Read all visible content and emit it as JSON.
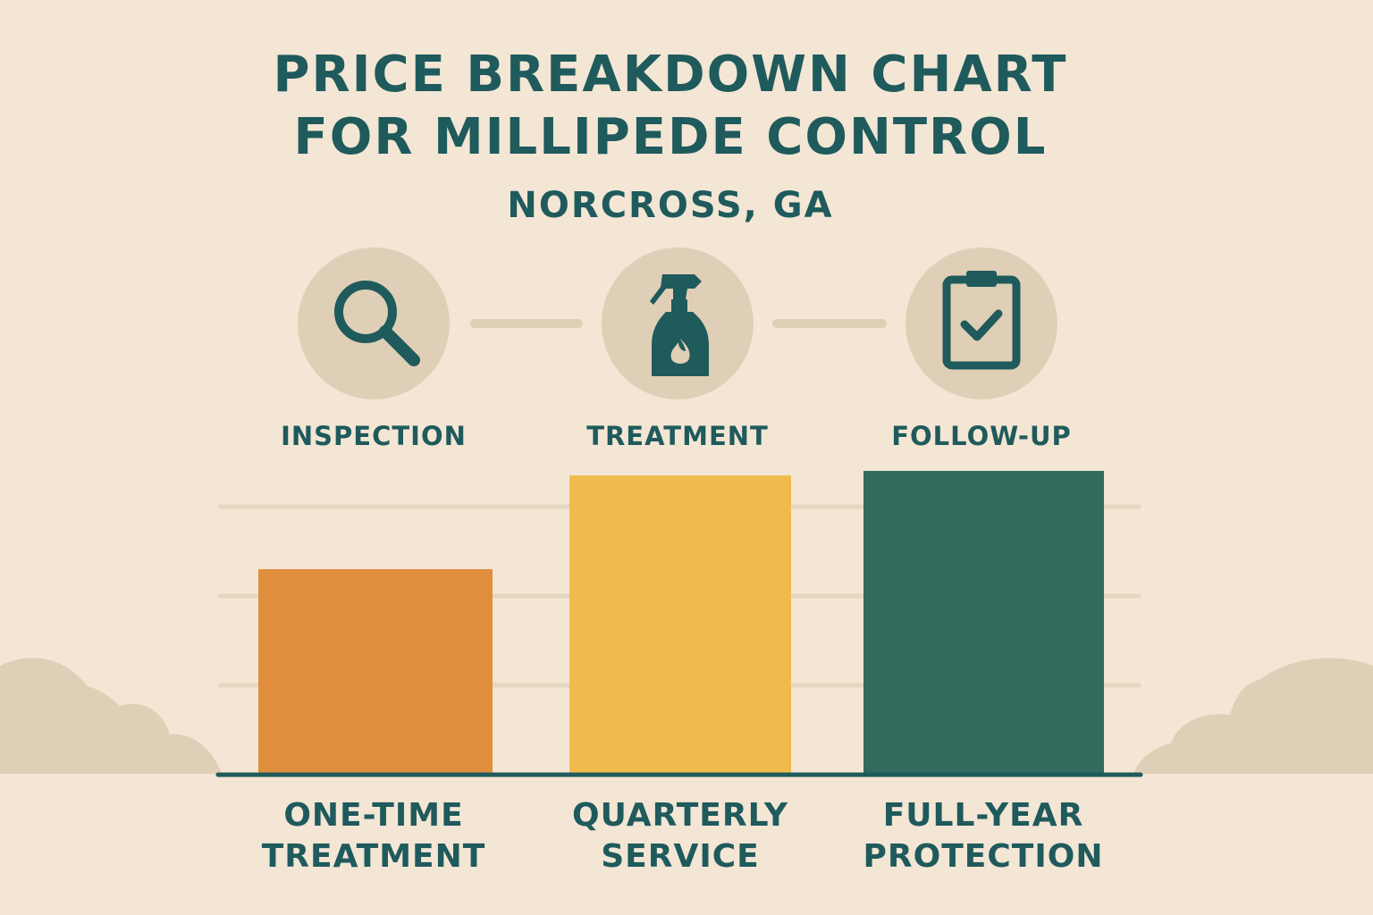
{
  "header": {
    "title_line1": "PRICE BREAKDOWN CHART",
    "title_line2": "FOR MILLIPEDE CONTROL",
    "subtitle": "NORCROSS, GA"
  },
  "steps": [
    {
      "label": "INSPECTION",
      "icon": "magnifying-glass-icon"
    },
    {
      "label": "TREATMENT",
      "icon": "spray-bottle-icon"
    },
    {
      "label": "FOLLOW-UP",
      "icon": "clipboard-check-icon"
    }
  ],
  "colors": {
    "background": "#f3e6d4",
    "text": "#1f5a5c",
    "bar_one_time": "#e08e3e",
    "bar_quarterly": "#efbb4e",
    "bar_full_year": "#336a5e",
    "decor": "#dfcfb6",
    "gridline": "#e6d6bf"
  },
  "chart_data": {
    "type": "bar",
    "categories": [
      "ONE-TIME\nTREATMENT",
      "QUARTERLY\nSERVICE",
      "FULL-YEAR\nPROTECTION"
    ],
    "values": [
      2.3,
      3.35,
      3.4
    ],
    "ylim": [
      0,
      4
    ],
    "grid": true,
    "yticks": [
      1,
      2,
      3
    ],
    "title": "",
    "xlabel": "",
    "ylabel": ""
  }
}
